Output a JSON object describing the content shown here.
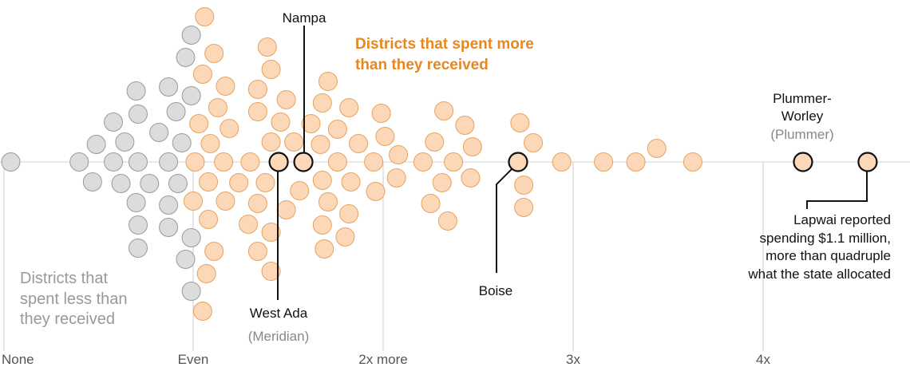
{
  "chart_data": {
    "type": "scatter",
    "subtype": "beeswarm",
    "x_tick_labels": [
      {
        "value": 0,
        "label": "None"
      },
      {
        "value": 1,
        "label": "Even"
      },
      {
        "value": 2,
        "label": "2x more"
      },
      {
        "value": 3,
        "label": "3x"
      },
      {
        "value": 4,
        "label": "4x"
      }
    ],
    "xlim": [
      0,
      4.8
    ],
    "grid": true,
    "colors": {
      "less_fill": "#dcdcdc",
      "less_stroke": "#9a9a9a",
      "more_fill": "#fdd8b8",
      "more_stroke": "#e5a35e",
      "more_label": "#e8871e",
      "less_label": "#999999",
      "highlight_stroke": "#111111"
    },
    "group_labels": {
      "more": [
        "Districts that spent more",
        "than they received"
      ],
      "less": [
        "Districts that",
        "spent less than",
        "they received"
      ]
    },
    "points_less": [
      0.04,
      0.4,
      0.58,
      0.71,
      0.87,
      0.49,
      0.64,
      0.94,
      0.82,
      0.58,
      0.71,
      0.91,
      0.7,
      0.87,
      0.99,
      0.99,
      0.96,
      0.47,
      0.62,
      0.77,
      0.92,
      0.7,
      0.87,
      0.71,
      0.87,
      0.99,
      0.71,
      0.96,
      0.99
    ],
    "points_more": [
      1.06,
      1.11,
      1.05,
      1.39,
      1.41,
      1.17,
      1.34,
      1.71,
      1.49,
      1.13,
      1.34,
      1.68,
      1.82,
      1.03,
      1.19,
      1.46,
      1.62,
      1.76,
      1.09,
      1.41,
      1.53,
      1.67,
      1.87,
      1.01,
      1.16,
      1.3,
      1.76,
      1.08,
      1.24,
      1.38,
      1.56,
      1.68,
      1.83,
      1.0,
      1.17,
      1.34,
      1.49,
      1.71,
      1.82,
      1.08,
      1.29,
      1.41,
      1.68,
      1.8,
      1.11,
      1.34,
      1.69,
      1.07,
      1.41,
      1.05,
      1.99,
      2.01,
      2.08,
      1.95,
      2.21,
      2.37,
      2.32,
      2.43,
      2.27,
      2.47,
      2.72,
      2.79,
      2.94,
      3.16,
      3.33,
      3.44,
      3.63,
      2.07,
      1.96,
      2.31,
      2.46,
      2.25,
      2.34,
      2.74,
      2.74
    ],
    "highlighted": [
      {
        "name": "West Ada",
        "sub": "(Meridian)",
        "value": 1.45
      },
      {
        "name": "Nampa",
        "value": 1.58
      },
      {
        "name": "Boise",
        "value": 2.71
      },
      {
        "name": "Plummer-",
        "name2": "Worley",
        "sub": "(Plummer)",
        "value": 4.21
      },
      {
        "name": "Lapwai",
        "value": 4.55,
        "note": [
          "Lapwai reported",
          "spending $1.1 million,",
          "more than quadruple",
          "what the state allocated"
        ]
      }
    ]
  }
}
